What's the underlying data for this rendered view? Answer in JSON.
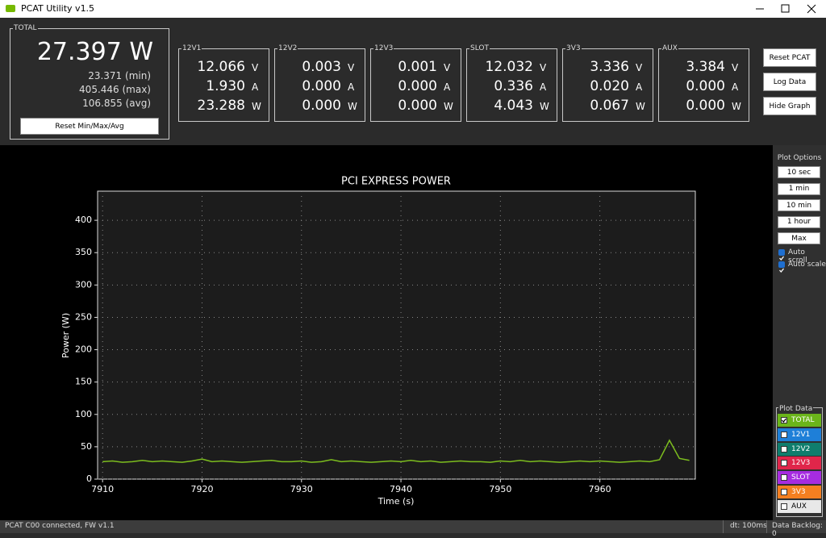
{
  "window": {
    "title": "PCAT Utility v1.5"
  },
  "total": {
    "label": "TOTAL",
    "power": "27.397 W",
    "min": "23.371 (min)",
    "max": "405.446 (max)",
    "avg": "106.855 (avg)",
    "reset_button": "Reset Min/Max/Avg"
  },
  "rails": [
    {
      "label": "12V1",
      "voltage": "12.066",
      "voltage_unit": "V",
      "current": "1.930",
      "current_unit": "A",
      "power": "23.288",
      "power_unit": "W"
    },
    {
      "label": "12V2",
      "voltage": "0.003",
      "voltage_unit": "V",
      "current": "0.000",
      "current_unit": "A",
      "power": "0.000",
      "power_unit": "W"
    },
    {
      "label": "12V3",
      "voltage": "0.001",
      "voltage_unit": "V",
      "current": "0.000",
      "current_unit": "A",
      "power": "0.000",
      "power_unit": "W"
    },
    {
      "label": "SLOT",
      "voltage": "12.032",
      "voltage_unit": "V",
      "current": "0.336",
      "current_unit": "A",
      "power": "4.043",
      "power_unit": "W"
    },
    {
      "label": "3V3",
      "voltage": "3.336",
      "voltage_unit": "V",
      "current": "0.020",
      "current_unit": "A",
      "power": "0.067",
      "power_unit": "W"
    },
    {
      "label": "AUX",
      "voltage": "3.384",
      "voltage_unit": "V",
      "current": "0.000",
      "current_unit": "A",
      "power": "0.000",
      "power_unit": "W"
    }
  ],
  "buttons": [
    "Reset PCAT",
    "Log Data",
    "Hide Graph"
  ],
  "plot_options": {
    "title": "Plot Options",
    "buttons": [
      "10 sec",
      "1 min",
      "10 min",
      "1 hour",
      "Max"
    ],
    "checkboxes": [
      {
        "label": "Auto scroll",
        "checked": true
      },
      {
        "label": "Auto scale",
        "checked": true
      }
    ]
  },
  "plot_data": {
    "title": "Plot Data",
    "items": [
      {
        "label": "TOTAL",
        "color": "#6bb51a",
        "checked": true
      },
      {
        "label": "12V1",
        "color": "#1e7fd8",
        "checked": false
      },
      {
        "label": "12V2",
        "color": "#0f7d6d",
        "checked": false
      },
      {
        "label": "12V3",
        "color": "#e0264a",
        "checked": false
      },
      {
        "label": "SLOT",
        "color": "#a62ce0",
        "checked": false
      },
      {
        "label": "3V3",
        "color": "#f57f20",
        "checked": false
      },
      {
        "label": "AUX",
        "color": "#e8e8e8",
        "checked": false
      }
    ]
  },
  "status": {
    "left": "PCAT C00 connected, FW v1.1",
    "dt": "dt: 100ms",
    "backlog": "Data Backlog: 0"
  },
  "chart_data": {
    "type": "line",
    "title": "PCI EXPRESS POWER",
    "x_label": "Time (s)",
    "y_label": "Power (W)",
    "x": [
      7910,
      7911,
      7912,
      7913,
      7914,
      7915,
      7916,
      7917,
      7918,
      7919,
      7920,
      7921,
      7922,
      7923,
      7924,
      7925,
      7926,
      7927,
      7928,
      7929,
      7930,
      7931,
      7932,
      7933,
      7934,
      7935,
      7936,
      7937,
      7938,
      7939,
      7940,
      7941,
      7942,
      7943,
      7944,
      7945,
      7946,
      7947,
      7948,
      7949,
      7950,
      7951,
      7952,
      7953,
      7954,
      7955,
      7956,
      7957,
      7958,
      7959,
      7960,
      7961,
      7962,
      7963,
      7964,
      7965,
      7966,
      7967,
      7968,
      7969
    ],
    "color": "#7cbd1e",
    "values": [
      27,
      28,
      26,
      27,
      29,
      27,
      28,
      27,
      26,
      28,
      31,
      27,
      28,
      27,
      26,
      27,
      28,
      29,
      27,
      27,
      28,
      26,
      27,
      30,
      27,
      28,
      27,
      26,
      27,
      28,
      27,
      29,
      27,
      28,
      26,
      27,
      28,
      27,
      27,
      26,
      28,
      27,
      29,
      27,
      28,
      27,
      26,
      27,
      28,
      27,
      28,
      27,
      26,
      27,
      28,
      27,
      30,
      60,
      32,
      29
    ],
    "xlim": [
      7909.5,
      7969.6
    ],
    "ylim": [
      0,
      445
    ],
    "xticks": [
      7910,
      7920,
      7930,
      7940,
      7950,
      7960
    ],
    "yticks": [
      0,
      50,
      100,
      150,
      200,
      250,
      300,
      350,
      400
    ],
    "grid": true
  }
}
